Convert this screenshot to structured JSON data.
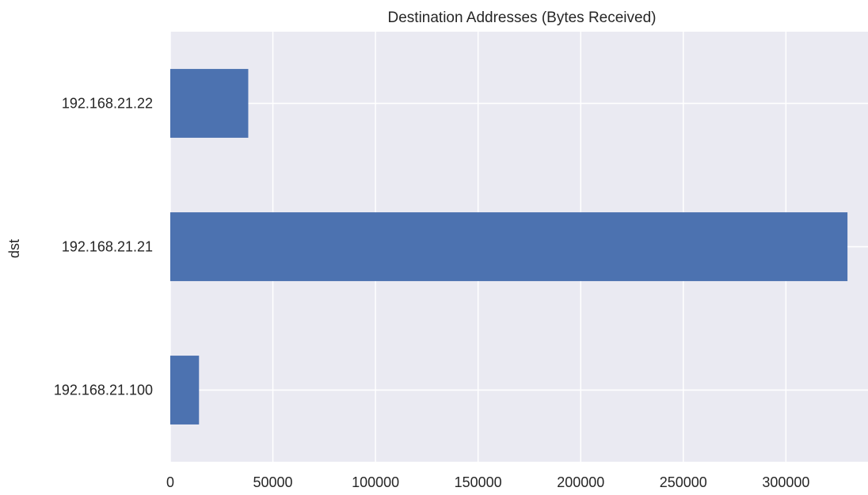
{
  "chart_data": {
    "type": "bar",
    "orientation": "horizontal",
    "title": "Destination Addresses (Bytes Received)",
    "xlabel": "",
    "ylabel": "dst",
    "categories": [
      "192.168.21.100",
      "192.168.21.21",
      "192.168.21.22"
    ],
    "values": [
      14000,
      330000,
      38000
    ],
    "xlim": [
      0,
      340000
    ],
    "xticks": [
      0,
      50000,
      100000,
      150000,
      200000,
      250000,
      300000
    ],
    "grid": true,
    "legend": "none",
    "colors": {
      "bar": "#4c72b0",
      "plot_background": "#eaeaf2",
      "grid": "#ffffff",
      "text": "#262626"
    }
  }
}
